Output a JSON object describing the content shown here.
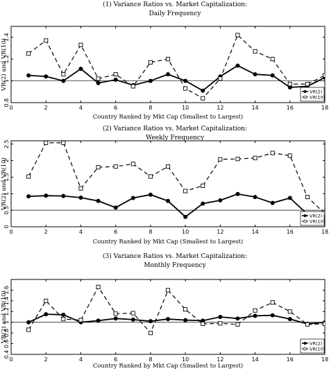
{
  "chart_data": [
    {
      "type": "line",
      "title": "(1) Variance Ratios vs. Market Capitalization:",
      "subtitle": "Daily Frequency",
      "xlabel": "Country Ranked by Mkt Cap (Smallest to Largest)",
      "ylabel": "VR(2) and VR(10)",
      "xlim": [
        0,
        18
      ],
      "ylim": [
        0.8,
        1.5
      ],
      "xticks": [
        "0",
        "2",
        "4",
        "6",
        "8",
        "10",
        "12",
        "14",
        "16",
        "18"
      ],
      "yticks": [
        "0.8",
        "1",
        "1.2",
        "1.4"
      ],
      "reference_line": 1,
      "legend_position": "bottom-right",
      "x": [
        1,
        2,
        3,
        4,
        5,
        6,
        7,
        8,
        9,
        10,
        11,
        12,
        13,
        14,
        15,
        16,
        17,
        18
      ],
      "series": [
        {
          "name": "VR(2)",
          "marker": "filled-circle",
          "dash": "solid",
          "values": [
            1.05,
            1.04,
            1.0,
            1.11,
            0.98,
            1.01,
            0.96,
            1.0,
            1.06,
            1.0,
            0.91,
            1.04,
            1.14,
            1.06,
            1.05,
            0.94,
            0.95,
            1.03
          ]
        },
        {
          "name": "VR(10)",
          "marker": "open-square",
          "dash": "dashed",
          "values": [
            1.25,
            1.37,
            1.06,
            1.33,
            1.02,
            1.06,
            0.95,
            1.17,
            1.2,
            0.93,
            0.84,
            1.02,
            1.42,
            1.27,
            1.2,
            0.97,
            0.97,
            1.05
          ]
        }
      ]
    },
    {
      "type": "line",
      "title": "(2) Variance Ratios vs. Market Capitalization:",
      "subtitle": "Weekly Frequency",
      "xlabel": "Country Ranked by Mkt Cap (Smallest to Largest)",
      "ylabel": "VR(2) and VR(10)",
      "xlim": [
        0,
        18
      ],
      "ylim": [
        0,
        2.6
      ],
      "xticks": [
        "0",
        "2",
        "4",
        "6",
        "8",
        "10",
        "12",
        "14",
        "16",
        "18"
      ],
      "yticks": [
        "0",
        "0.5",
        "1",
        "1.5",
        "2",
        "2.5"
      ],
      "reference_line": 0.5,
      "legend_position": "bottom-right",
      "x": [
        1,
        2,
        3,
        4,
        5,
        6,
        7,
        8,
        9,
        10,
        11,
        12,
        13,
        14,
        15,
        16,
        17,
        18
      ],
      "series": [
        {
          "name": "VR(2)",
          "marker": "filled-circle",
          "dash": "solid",
          "values": [
            0.92,
            0.94,
            0.93,
            0.88,
            0.78,
            0.58,
            0.87,
            0.97,
            0.78,
            0.3,
            0.7,
            0.8,
            0.99,
            0.9,
            0.72,
            0.87,
            0.38,
            0.38
          ]
        },
        {
          "name": "VR(10)",
          "marker": "open-square",
          "dash": "dashed",
          "values": [
            1.52,
            2.54,
            2.54,
            1.16,
            1.8,
            1.82,
            1.9,
            1.52,
            1.82,
            1.08,
            1.24,
            2.04,
            2.05,
            2.08,
            2.23,
            2.15,
            0.9,
            0.4
          ]
        }
      ]
    },
    {
      "type": "line",
      "title": "(3) Variance Ratios vs. Market Capitalization:",
      "subtitle": "Monthly Frequency",
      "xlabel": "Country Ranked by Mkt Cap (Smallest to Largest)",
      "ylabel": "VR(2) and VR(10)",
      "xlim": [
        0,
        18
      ],
      "ylim": [
        0.4,
        1.8
      ],
      "xticks": [
        "0",
        "2",
        "4",
        "6",
        "8",
        "10",
        "12",
        "14",
        "16",
        "18"
      ],
      "yticks": [
        "0.4",
        "0.6",
        "0.8",
        "1",
        "1.2",
        "1.4",
        "1.6"
      ],
      "reference_line": 1,
      "legend_position": "bottom-right",
      "x": [
        1,
        2,
        3,
        4,
        5,
        6,
        7,
        8,
        9,
        10,
        11,
        12,
        13,
        14,
        15,
        16,
        17,
        18
      ],
      "series": [
        {
          "name": "VR(2)",
          "marker": "filled-circle",
          "dash": "solid",
          "values": [
            1.0,
            1.15,
            1.14,
            1.0,
            1.03,
            1.07,
            1.05,
            1.02,
            1.06,
            1.04,
            1.03,
            1.1,
            1.07,
            1.12,
            1.13,
            1.06,
            0.97,
            1.0
          ]
        },
        {
          "name": "VR(10)",
          "marker": "open-square",
          "dash": "dashed",
          "values": [
            0.86,
            1.4,
            1.06,
            1.04,
            1.66,
            1.16,
            1.17,
            0.8,
            1.6,
            1.24,
            0.97,
            0.98,
            0.96,
            1.22,
            1.37,
            1.2,
            0.96,
            0.97
          ]
        }
      ]
    }
  ]
}
